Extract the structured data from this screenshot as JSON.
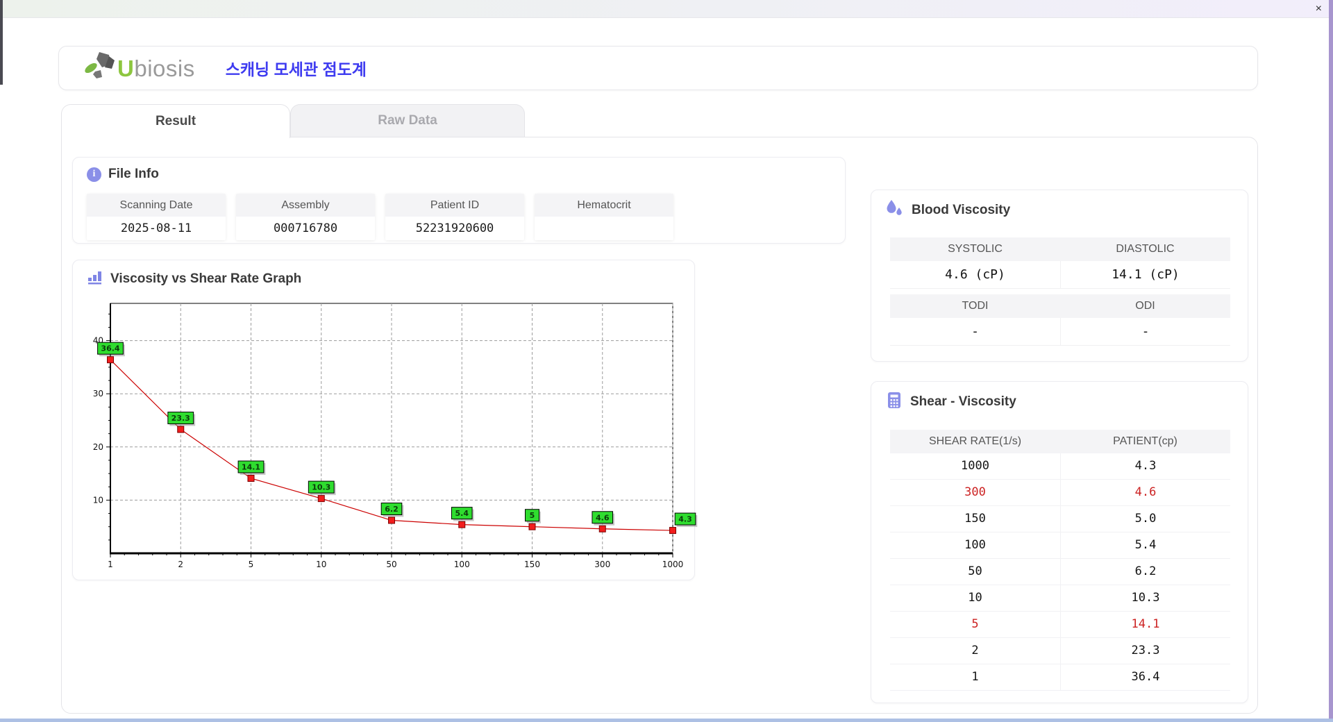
{
  "window": {
    "close_label": "×"
  },
  "header": {
    "logo_text_u": "U",
    "logo_text_rest": "biosis",
    "app_title": "스캐닝 모세관 점도계"
  },
  "tabs": [
    {
      "label": "Result",
      "active": true
    },
    {
      "label": "Raw Data",
      "active": false
    }
  ],
  "file_info": {
    "title": "File Info",
    "fields": [
      {
        "label": "Scanning Date",
        "value": "2025-08-11"
      },
      {
        "label": "Assembly",
        "value": "000716780"
      },
      {
        "label": "Patient ID",
        "value": "52231920600"
      },
      {
        "label": "Hematocrit",
        "value": ""
      }
    ]
  },
  "blood_viscosity": {
    "title": "Blood Viscosity",
    "row1": {
      "col1_label": "SYSTOLIC",
      "col2_label": "DIASTOLIC",
      "col1_value": "4.6 (cP)",
      "col2_value": "14.1 (cP)"
    },
    "row2": {
      "col1_label": "TODI",
      "col2_label": "ODI",
      "col1_value": "-",
      "col2_value": "-"
    }
  },
  "graph": {
    "title": "Viscosity vs Shear Rate Graph"
  },
  "shear_viscosity": {
    "title": "Shear - Viscosity",
    "columns": [
      "SHEAR RATE(1/s)",
      "PATIENT(cp)"
    ],
    "rows": [
      {
        "shear_rate": "1000",
        "patient": "4.3",
        "highlight": false
      },
      {
        "shear_rate": "300",
        "patient": "4.6",
        "highlight": true
      },
      {
        "shear_rate": "150",
        "patient": "5.0",
        "highlight": false
      },
      {
        "shear_rate": "100",
        "patient": "5.4",
        "highlight": false
      },
      {
        "shear_rate": "50",
        "patient": "6.2",
        "highlight": false
      },
      {
        "shear_rate": "10",
        "patient": "10.3",
        "highlight": false
      },
      {
        "shear_rate": "5",
        "patient": "14.1",
        "highlight": true
      },
      {
        "shear_rate": "2",
        "patient": "23.3",
        "highlight": false
      },
      {
        "shear_rate": "1",
        "patient": "36.4",
        "highlight": false
      }
    ]
  },
  "chart_data": {
    "type": "line",
    "title": "Viscosity vs Shear Rate Graph",
    "x": [
      1,
      2,
      5,
      10,
      50,
      100,
      150,
      300,
      1000
    ],
    "x_tick_labels": [
      "1",
      "2",
      "5",
      "10",
      "50",
      "100",
      "150",
      "300",
      "1000"
    ],
    "values": [
      36.4,
      23.3,
      14.1,
      10.3,
      6.2,
      5.4,
      5,
      4.6,
      4.3
    ],
    "point_labels": [
      "36.4",
      "23.3",
      "14.1",
      "10.3",
      "6.2",
      "5.4",
      "5",
      "4.6",
      "4.3"
    ],
    "y_ticks": [
      10,
      20,
      30,
      40
    ],
    "ylim": [
      0,
      47
    ],
    "x_axis_type": "categorical-even-spacing",
    "grid": "dashed",
    "legend": "none",
    "line_color": "#cc0000",
    "marker_color": "#f21d1d",
    "marker_border_color": "#7a0000",
    "label_bg_color": "#2fdd2f",
    "label_text_color": "#0b3a0b"
  },
  "icons": {
    "logo": "ubiosis-logo-icon",
    "file_info": "info-icon",
    "graph": "bar-chart-icon",
    "blood_viscosity": "droplets-icon",
    "shear_viscosity": "calculator-icon",
    "close": "close-icon"
  },
  "colors": {
    "accent_purple": "#8a8fe8",
    "title_blue": "#3e3bf0",
    "logo_green": "#8dc63f",
    "logo_gray": "#9a9a9a",
    "highlight_red": "#cc2222",
    "header_cell_bg": "#f4f4f6"
  }
}
